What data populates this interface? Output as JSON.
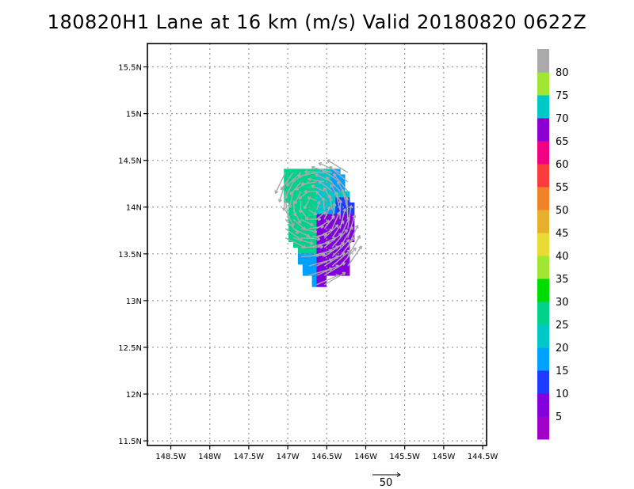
{
  "title": "180820H1 Lane at 16 km (m/s) Valid 20180820 0622Z",
  "chart_data": {
    "type": "heatmap",
    "title": "180820H1 Lane at 16 km (m/s) Valid 20180820 0622Z",
    "xlabel": "",
    "ylabel": "",
    "xlim": [
      -148.8,
      -144.45
    ],
    "ylim": [
      11.45,
      15.75
    ],
    "grid": true,
    "x_ticks": [
      {
        "value": -148.5,
        "label": "148.5W"
      },
      {
        "value": -148.0,
        "label": "148W"
      },
      {
        "value": -147.5,
        "label": "147.5W"
      },
      {
        "value": -147.0,
        "label": "147W"
      },
      {
        "value": -146.5,
        "label": "146.5W"
      },
      {
        "value": -146.0,
        "label": "146W"
      },
      {
        "value": -145.5,
        "label": "145.5W"
      },
      {
        "value": -145.0,
        "label": "145W"
      },
      {
        "value": -144.5,
        "label": "144.5W"
      }
    ],
    "y_ticks": [
      {
        "value": 11.5,
        "label": "11.5N"
      },
      {
        "value": 12.0,
        "label": "12N"
      },
      {
        "value": 12.5,
        "label": "12.5N"
      },
      {
        "value": 13.0,
        "label": "13N"
      },
      {
        "value": 13.5,
        "label": "13.5N"
      },
      {
        "value": 14.0,
        "label": "14N"
      },
      {
        "value": 14.5,
        "label": "14.5N"
      },
      {
        "value": 15.0,
        "label": "15N"
      },
      {
        "value": 15.5,
        "label": "15.5N"
      }
    ],
    "colorbar": {
      "labels": [
        "5",
        "10",
        "15",
        "20",
        "25",
        "30",
        "35",
        "40",
        "45",
        "50",
        "55",
        "60",
        "65",
        "70",
        "75",
        "80"
      ],
      "colors": [
        "#a000c8",
        "#8200dc",
        "#1e3cff",
        "#00a0ff",
        "#00c8c8",
        "#00d28c",
        "#00dc00",
        "#a0e632",
        "#e6dc32",
        "#e6af2d",
        "#f08228",
        "#fa3c3c",
        "#f00082",
        "#8c00d2",
        "#00c8c8",
        "#a0e632",
        "#aaaaaa"
      ]
    },
    "wind_field": {
      "lon_range": [
        -147.05,
        -146.15
      ],
      "lat_range": [
        13.15,
        14.4
      ],
      "center_lon": -146.68,
      "center_lat": 14.01
    },
    "vector_key": {
      "label": "50",
      "value": 50
    }
  }
}
